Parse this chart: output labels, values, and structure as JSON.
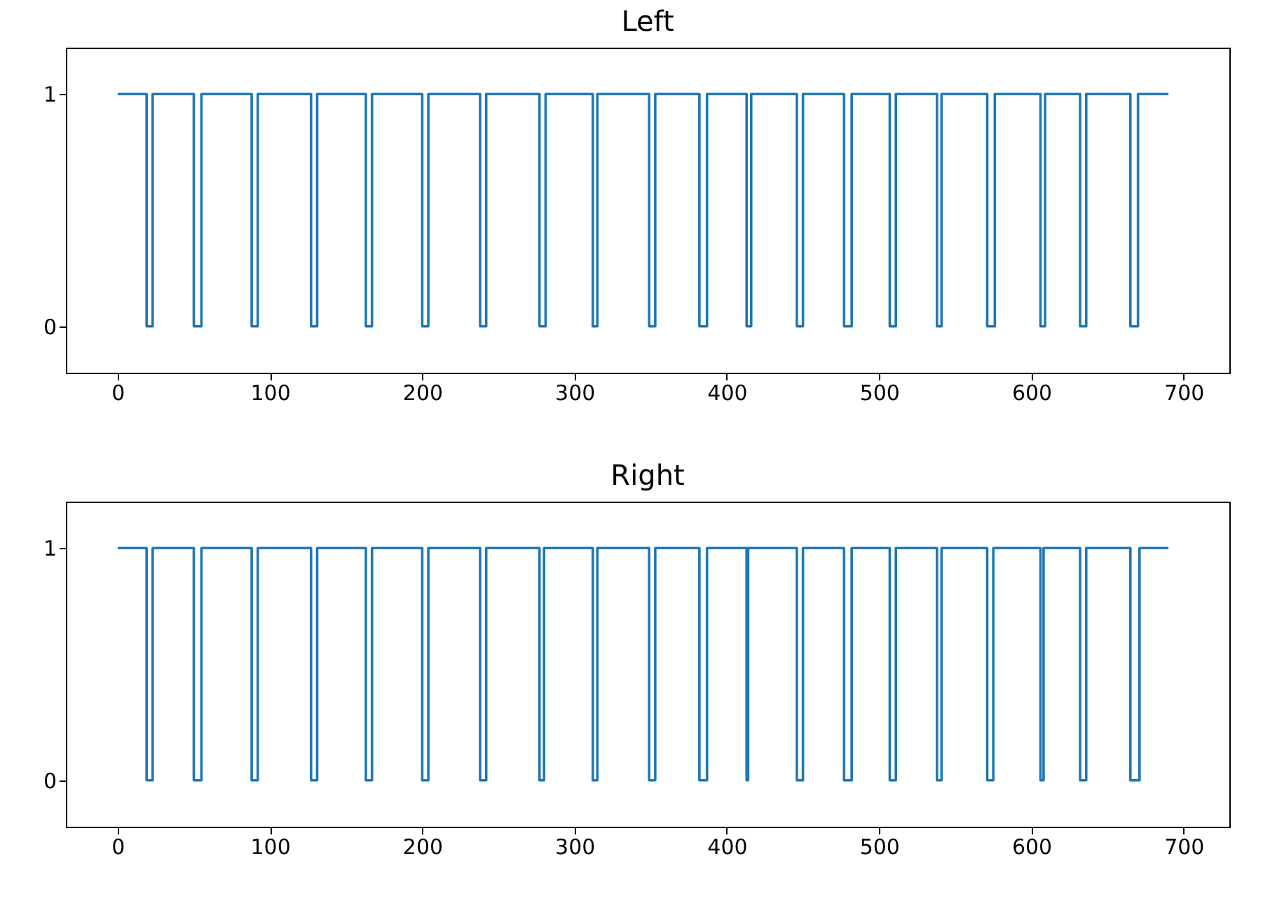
{
  "chart_data": [
    {
      "type": "step",
      "title": "Left",
      "color": "#1f77b4",
      "x": [
        0,
        19,
        23,
        50,
        55,
        88,
        92,
        127,
        131,
        163,
        167,
        200,
        204,
        238,
        242,
        277,
        281,
        312,
        315,
        349,
        353,
        382,
        387,
        413,
        416,
        446,
        450,
        477,
        482,
        507,
        511,
        538,
        541,
        571,
        576,
        606,
        609,
        632,
        636,
        665,
        670,
        690
      ],
      "values": [
        1,
        0,
        1,
        0,
        1,
        0,
        1,
        0,
        1,
        0,
        1,
        0,
        1,
        0,
        1,
        0,
        1,
        0,
        1,
        0,
        1,
        0,
        1,
        0,
        1,
        0,
        1,
        0,
        1,
        0,
        1,
        0,
        1,
        0,
        1,
        0,
        1,
        0,
        1,
        0,
        1,
        1
      ],
      "xlim": [
        -34,
        730
      ],
      "ylim": [
        -0.2,
        1.2
      ],
      "xticks": [
        {
          "value": 0,
          "label": "0"
        },
        100,
        200,
        300,
        400,
        500,
        600,
        700
      ],
      "yticks": [
        {
          "value": 0,
          "label": "0"
        },
        1
      ]
    },
    {
      "type": "step",
      "title": "Right",
      "color": "#1f77b4",
      "x": [
        0,
        19,
        23,
        50,
        55,
        88,
        92,
        127,
        131,
        163,
        167,
        200,
        204,
        238,
        242,
        277,
        280,
        312,
        315,
        349,
        353,
        382,
        387,
        413,
        414,
        446,
        450,
        477,
        482,
        507,
        511,
        538,
        541,
        571,
        575,
        606,
        608,
        632,
        636,
        665,
        671,
        690
      ],
      "values": [
        1,
        0,
        1,
        0,
        1,
        0,
        1,
        0,
        1,
        0,
        1,
        0,
        1,
        0,
        1,
        0,
        1,
        0,
        1,
        0,
        1,
        0,
        1,
        0,
        1,
        0,
        1,
        0,
        1,
        0,
        1,
        0,
        1,
        0,
        1,
        0,
        1,
        0,
        1,
        0,
        1,
        1
      ],
      "xlim": [
        -34,
        730
      ],
      "ylim": [
        -0.2,
        1.2
      ],
      "xticks": [
        {
          "value": 0,
          "label": "0"
        },
        100,
        200,
        300,
        400,
        500,
        600,
        700
      ],
      "yticks": [
        {
          "value": 0,
          "label": "0"
        },
        1
      ]
    }
  ]
}
